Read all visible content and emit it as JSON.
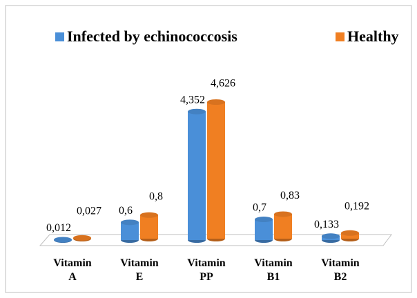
{
  "chart_data": {
    "type": "bar",
    "categories": [
      "Vitamin A",
      "Vitamin E",
      "Vitamin PP",
      "Vitamin B1",
      "Vitamin B2"
    ],
    "series": [
      {
        "name": "Infected by echinococcosis",
        "color": "#4a8fd8",
        "values": [
          0.012,
          0.6,
          4.352,
          0.7,
          0.133
        ],
        "value_labels": [
          "0,012",
          "0,6",
          "4,352",
          "0,7",
          "0,133"
        ]
      },
      {
        "name": "Healthy",
        "color": "#f07f22",
        "values": [
          0.027,
          0.8,
          4.626,
          0.83,
          0.192
        ],
        "value_labels": [
          "0,027",
          "0,8",
          "4,626",
          "0,83",
          "0,192"
        ]
      }
    ],
    "legend": "top"
  }
}
